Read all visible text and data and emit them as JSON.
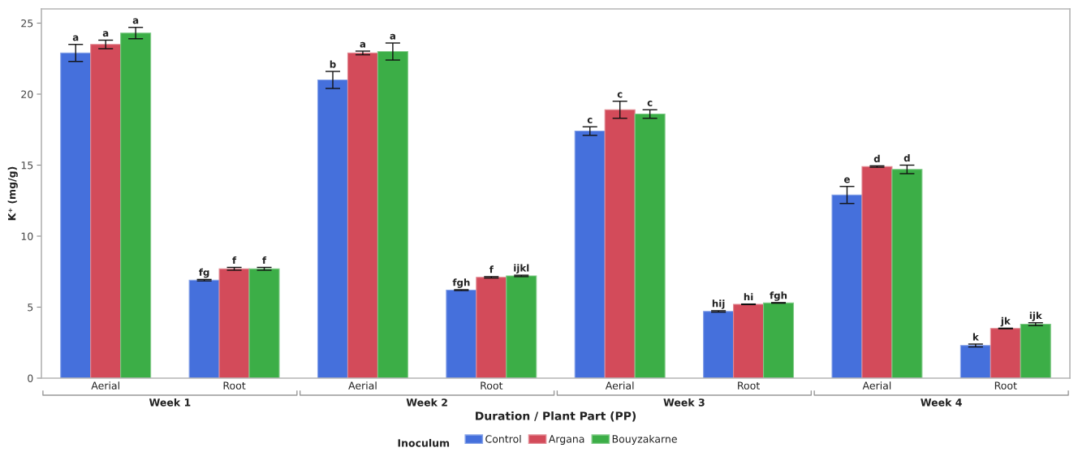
{
  "chart_data": {
    "type": "bar",
    "xlabel": "Duration / Plant Part (PP)",
    "ylabel": "K⁺ (mg/g)",
    "legend_title": "Inoculum",
    "categories": [
      "Aerial",
      "Root",
      "Aerial",
      "Root",
      "Aerial",
      "Root",
      "Aerial",
      "Root"
    ],
    "series": [
      {
        "name": "Control",
        "color": "#4570dc",
        "values": [
          22.9,
          6.9,
          21.0,
          6.2,
          17.4,
          4.7,
          12.9,
          2.3
        ],
        "errors": [
          0.6,
          0.05,
          0.6,
          0.03,
          0.3,
          0.05,
          0.6,
          0.1
        ],
        "value_labels": [
          "a",
          "fg",
          "b",
          "fgh",
          "c",
          "hij",
          "e",
          "k"
        ]
      },
      {
        "name": "Argana",
        "color": "#d34b5a",
        "values": [
          23.5,
          7.7,
          22.9,
          7.1,
          18.9,
          5.2,
          14.9,
          3.5
        ],
        "errors": [
          0.3,
          0.1,
          0.13,
          0.05,
          0.6,
          0.02,
          0.05,
          0.02
        ],
        "value_labels": [
          "a",
          "f",
          "a",
          "f",
          "c",
          "hi",
          "d",
          "jk"
        ]
      },
      {
        "name": "Bouyzakarne",
        "color": "#3cae47",
        "values": [
          24.3,
          7.7,
          23.0,
          7.2,
          18.6,
          5.3,
          14.7,
          3.8
        ],
        "errors": [
          0.4,
          0.1,
          0.6,
          0.05,
          0.3,
          0.02,
          0.3,
          0.1
        ],
        "value_labels": [
          "a",
          "f",
          "a",
          "ijkl",
          "c",
          "fgh",
          "d",
          "ijk"
        ]
      }
    ],
    "ylim": [
      0,
      26
    ],
    "yticks": [
      0,
      5,
      10,
      15,
      20,
      25
    ],
    "legend": "bottom",
    "annotations": [
      "Week 1",
      "Week 2",
      "Week 3",
      "Week 4"
    ]
  }
}
